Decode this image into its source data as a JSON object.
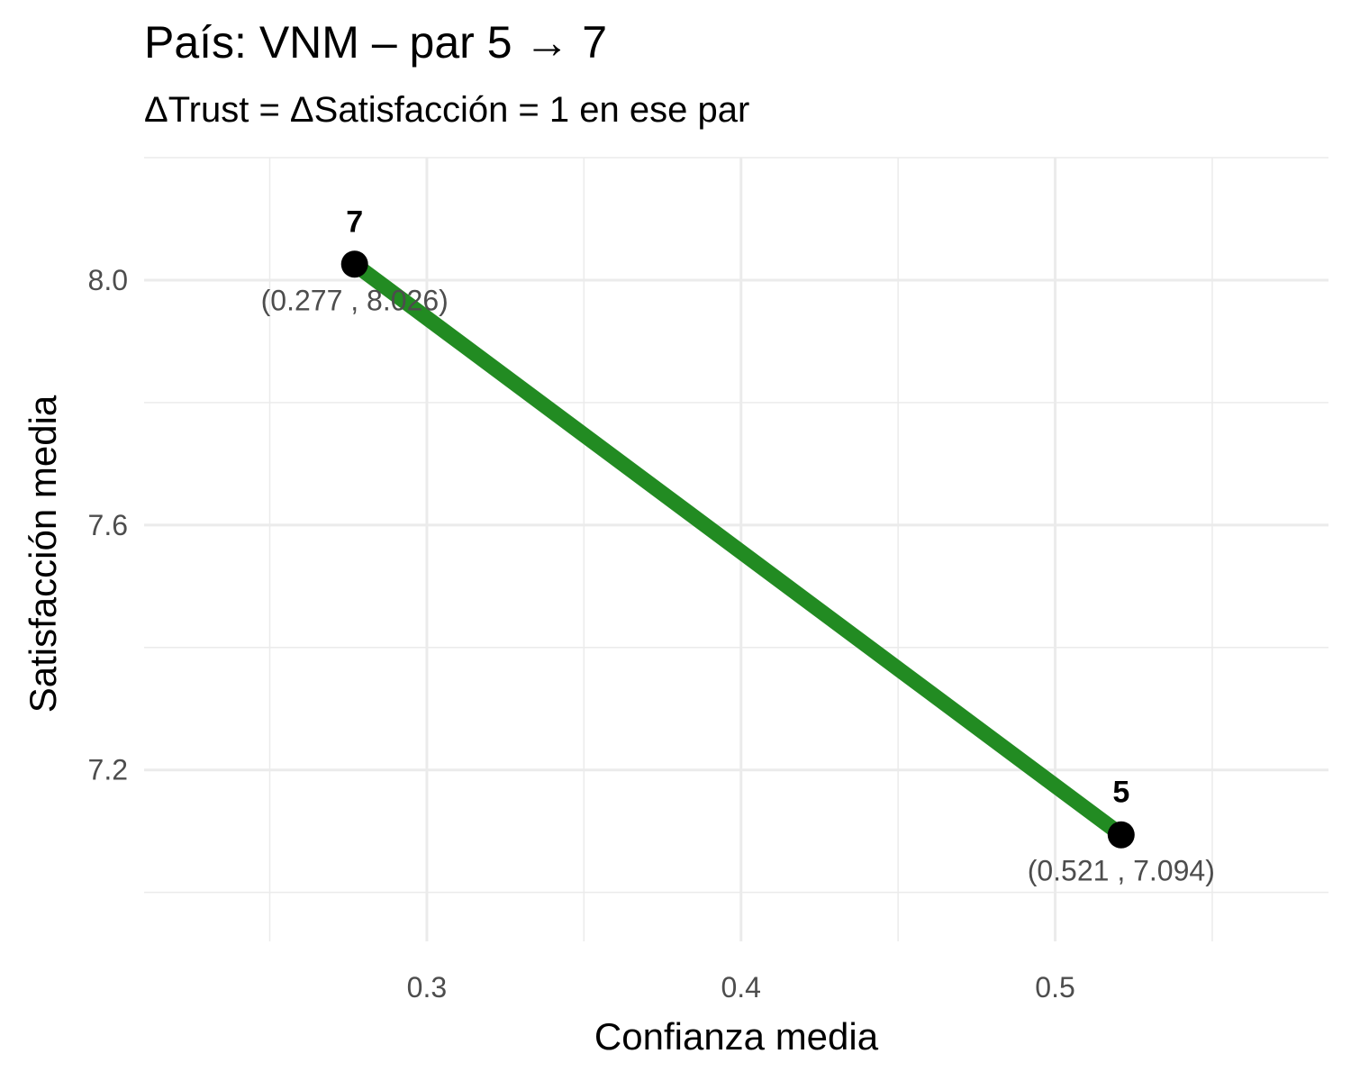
{
  "chart_data": {
    "type": "line",
    "title": "País: VNM – par 5 → 7",
    "subtitle": "ΔTrust = ΔSatisfacción = 1 en ese par",
    "xlabel": "Confianza media",
    "ylabel": "Satisfacción media",
    "xlim": [
      0.21,
      0.587
    ],
    "ylim": [
      6.92,
      8.2
    ],
    "x_ticks": [
      0.3,
      0.4,
      0.5
    ],
    "x_tick_labels": [
      "0.3",
      "0.4",
      "0.5"
    ],
    "y_ticks": [
      7.2,
      7.6,
      8.0
    ],
    "y_tick_labels": [
      "7.2",
      "7.6",
      "8.0"
    ],
    "grid": true,
    "line_color": "#228b22",
    "point_color": "#000000",
    "points": [
      {
        "label": "7",
        "x": 0.277,
        "y": 8.026,
        "coord_label": "(0.277 , 8.026)"
      },
      {
        "label": "5",
        "x": 0.521,
        "y": 7.094,
        "coord_label": "(0.521 , 7.094)"
      }
    ]
  }
}
